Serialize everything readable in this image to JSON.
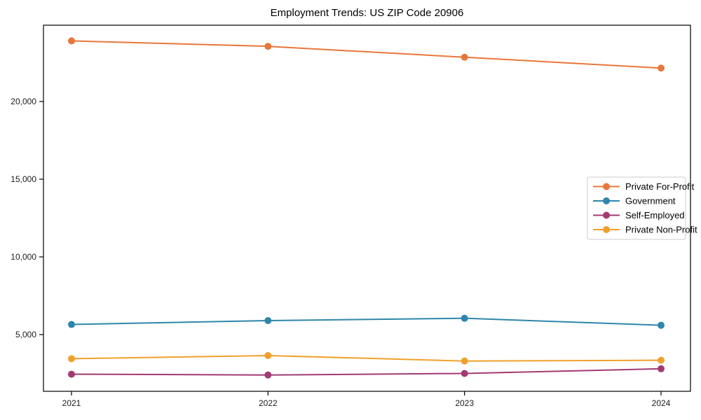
{
  "title": "Employment Trends: US ZIP Code 20906",
  "chart_data": {
    "type": "line",
    "title": "Employment Trends: US ZIP Code 20906",
    "xlabel": "",
    "ylabel": "",
    "categories": [
      "2021",
      "2022",
      "2023",
      "2024"
    ],
    "series": [
      {
        "name": "Private For-Profit",
        "color": "#e8773c",
        "values": [
          23900,
          23550,
          22850,
          22150
        ]
      },
      {
        "name": "Government",
        "color": "#2e86ab",
        "values": [
          5650,
          5900,
          6050,
          5600
        ]
      },
      {
        "name": "Self-Employed",
        "color": "#a23b72",
        "values": [
          2450,
          2400,
          2500,
          2800
        ]
      },
      {
        "name": "Private Non-Profit",
        "color": "#f0a02c",
        "values": [
          3450,
          3650,
          3300,
          3350
        ]
      }
    ],
    "yticks": [
      5000,
      10000,
      15000,
      20000
    ],
    "ytick_labels": [
      "5,000",
      "10,000",
      "15,000",
      "20,000"
    ],
    "ylim": [
      1350,
      24910
    ],
    "grid": false,
    "marker": "circle",
    "legend_position": "center right",
    "axis_color": "#000000",
    "tick_label_color": "#1a1a1a",
    "legend_border_color": "#cccccc",
    "legend_bg_color": "#ffffff"
  }
}
